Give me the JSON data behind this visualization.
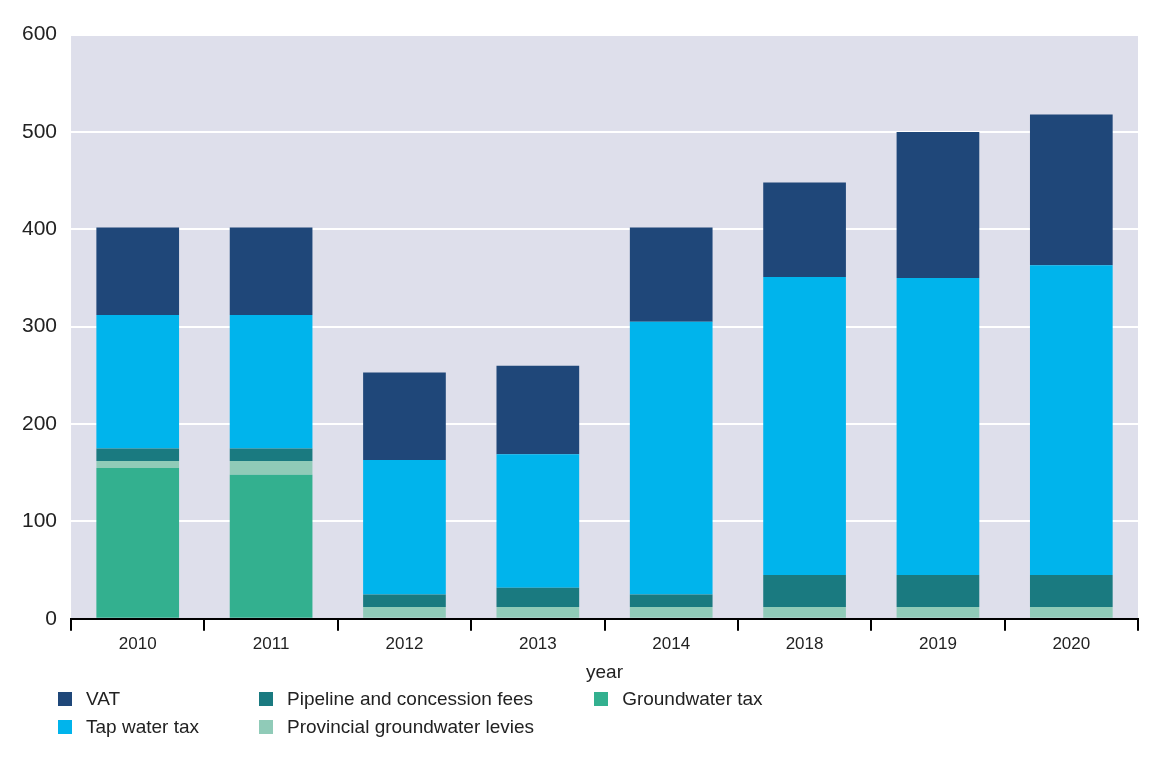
{
  "chart_data": {
    "type": "bar",
    "stacked": true,
    "xlabel": "year",
    "categories": [
      "2010",
      "2011",
      "2012",
      "2013",
      "2014",
      "2018",
      "2019",
      "2020"
    ],
    "series": [
      {
        "name": "Groundwater tax",
        "color": "#33b08f",
        "values": [
          155,
          148,
          0,
          0,
          0,
          0,
          0,
          0
        ]
      },
      {
        "name": "Provincial groundwater levies",
        "color": "#90cbb8",
        "values": [
          7,
          14,
          12,
          12,
          12,
          12,
          12,
          12
        ]
      },
      {
        "name": "Pipeline and concession fees",
        "color": "#1a7a80",
        "values": [
          13,
          13,
          13,
          20,
          13,
          33,
          33,
          33
        ]
      },
      {
        "name": "Tap water tax",
        "color": "#00b4ec",
        "values": [
          137,
          137,
          138,
          137,
          280,
          306,
          305,
          318
        ]
      },
      {
        "name": "VAT",
        "color": "#1f4779",
        "values": [
          90,
          90,
          90,
          91,
          97,
          97,
          150,
          155
        ]
      }
    ],
    "ylim": [
      0,
      600
    ],
    "yticks": [
      0,
      100,
      200,
      300,
      400,
      500,
      600
    ],
    "grid": "y",
    "legend": "bottom"
  }
}
